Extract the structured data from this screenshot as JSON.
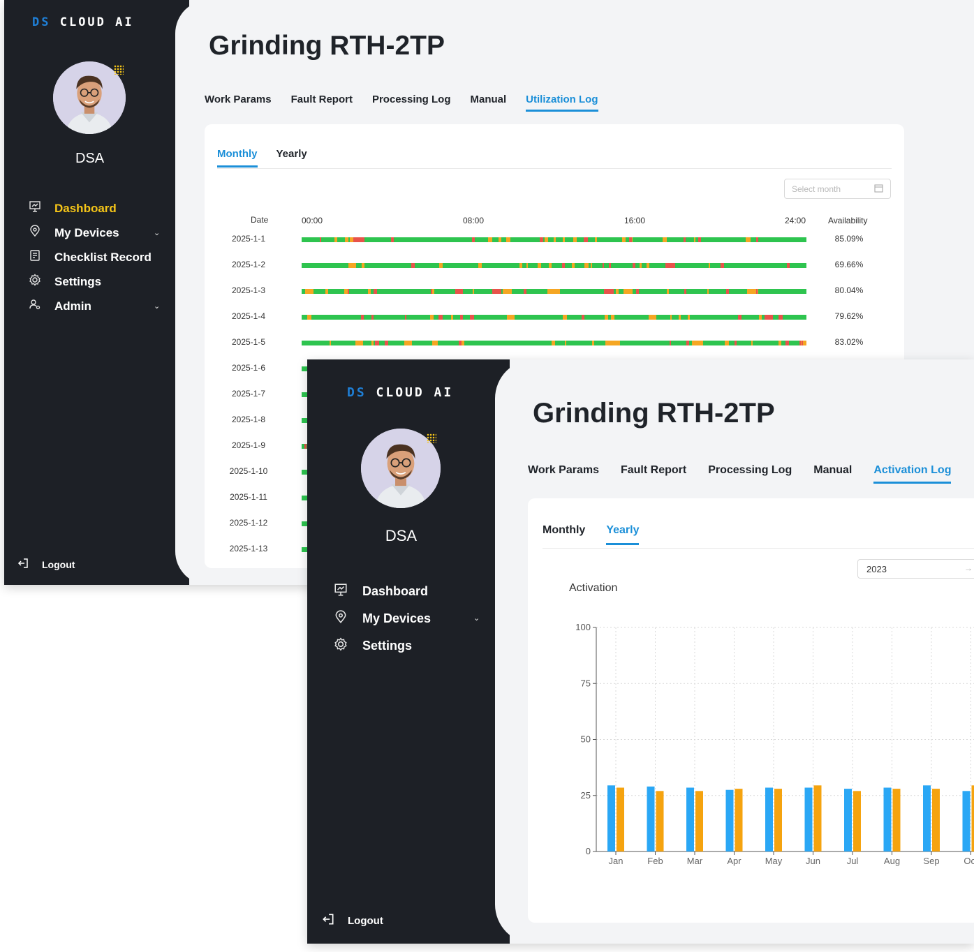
{
  "brand": {
    "ds": "DS",
    "rest": " CLOUD AI"
  },
  "user": {
    "name": "DSA"
  },
  "machine": {
    "title": "Grinding RTH-2TP"
  },
  "window1": {
    "sidebar": {
      "items": [
        {
          "label": "Dashboard",
          "icon": "presentation-chart-icon",
          "active": true,
          "chevron": false
        },
        {
          "label": "My Devices",
          "icon": "map-pin-icon",
          "active": false,
          "chevron": true
        },
        {
          "label": "Checklist Record",
          "icon": "checklist-icon",
          "active": false,
          "chevron": false
        },
        {
          "label": "Settings",
          "icon": "gear-icon",
          "active": false,
          "chevron": false
        },
        {
          "label": "Admin",
          "icon": "admin-user-icon",
          "active": false,
          "chevron": true
        }
      ],
      "logout": "Logout"
    },
    "tabs": [
      "Work Params",
      "Fault Report",
      "Processing Log",
      "Manual",
      "Utilization Log"
    ],
    "active_tab": "Utilization Log",
    "subtabs": [
      "Monthly",
      "Yearly"
    ],
    "active_subtab": "Monthly",
    "picker": {
      "placeholder": "Select month"
    },
    "table": {
      "date_header": "Date",
      "time_ticks": [
        "00:00",
        "08:00",
        "16:00",
        "24:00"
      ],
      "availability_header": "Availability",
      "colors": {
        "running": "#2ec44f",
        "idle": "#f5a623",
        "fault": "#e8534b"
      },
      "rows": [
        {
          "date": "2025-1-1",
          "availability": "85.09%"
        },
        {
          "date": "2025-1-2",
          "availability": "69.66%"
        },
        {
          "date": "2025-1-3",
          "availability": "80.04%"
        },
        {
          "date": "2025-1-4",
          "availability": "79.62%"
        },
        {
          "date": "2025-1-5",
          "availability": "83.02%"
        },
        {
          "date": "2025-1-6",
          "availability": ""
        },
        {
          "date": "2025-1-7",
          "availability": ""
        },
        {
          "date": "2025-1-8",
          "availability": ""
        },
        {
          "date": "2025-1-9",
          "availability": ""
        },
        {
          "date": "2025-1-10",
          "availability": ""
        },
        {
          "date": "2025-1-11",
          "availability": ""
        },
        {
          "date": "2025-1-12",
          "availability": ""
        },
        {
          "date": "2025-1-13",
          "availability": ""
        }
      ]
    }
  },
  "window2": {
    "sidebar": {
      "items": [
        {
          "label": "Dashboard",
          "icon": "presentation-chart-icon",
          "active": false,
          "chevron": false
        },
        {
          "label": "My Devices",
          "icon": "map-pin-icon",
          "active": false,
          "chevron": true
        },
        {
          "label": "Settings",
          "icon": "gear-icon",
          "active": false,
          "chevron": false
        }
      ],
      "logout": "Logout"
    },
    "tabs": [
      "Work Params",
      "Fault Report",
      "Processing Log",
      "Manual",
      "Activation Log"
    ],
    "active_tab": "Activation Log",
    "subtabs": [
      "Monthly",
      "Yearly"
    ],
    "active_subtab": "Yearly",
    "picker": {
      "value": "2023"
    }
  },
  "chart_data": {
    "type": "bar",
    "title": "Activation",
    "xlabel": "",
    "ylabel": "",
    "ylim": [
      0,
      100
    ],
    "yticks": [
      0,
      25,
      50,
      75,
      100
    ],
    "grid": true,
    "categories": [
      "Jan",
      "Feb",
      "Mar",
      "Apr",
      "May",
      "Jun",
      "Jul",
      "Aug",
      "Sep",
      "Oct"
    ],
    "series": [
      {
        "color": "#2aa7f5",
        "values": [
          29.5,
          29,
          28.5,
          27.5,
          28.5,
          28.5,
          28,
          28.5,
          29.5,
          27
        ]
      },
      {
        "color": "#f5a30f",
        "values": [
          28.5,
          27,
          27,
          28,
          28,
          29.5,
          27,
          28,
          28,
          29.5
        ]
      }
    ]
  }
}
